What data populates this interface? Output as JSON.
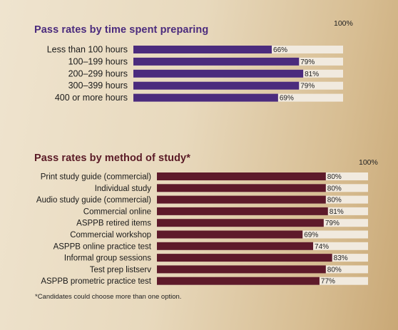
{
  "chart_data": [
    {
      "type": "bar",
      "orientation": "horizontal",
      "title": "Pass rates by time spent preparing",
      "max_label": "100%",
      "xlim": [
        0,
        100
      ],
      "bar_color": "#4b2b7d",
      "track_color": "#f1eadf",
      "categories": [
        "Less than 100 hours",
        "100–199 hours",
        "200–299 hours",
        "300–399 hours",
        "400 or more hours"
      ],
      "values": [
        66,
        79,
        81,
        79,
        69
      ],
      "value_labels": [
        "66%",
        "79%",
        "81%",
        "79%",
        "69%"
      ]
    },
    {
      "type": "bar",
      "orientation": "horizontal",
      "title": "Pass rates by method of study*",
      "max_label": "100%",
      "xlim": [
        0,
        100
      ],
      "bar_color": "#5e1a2a",
      "track_color": "#f1eadf",
      "categories": [
        "Print study guide (commercial)",
        "Individual study",
        "Audio study guide (commercial)",
        "Commercial online",
        "ASPPB retired items",
        "Commercial workshop",
        "ASPPB online practice test",
        "Informal group sessions",
        "Test prep listserv",
        "ASPPB prometric practice test"
      ],
      "values": [
        80,
        80,
        80,
        81,
        79,
        69,
        74,
        83,
        80,
        77
      ],
      "value_labels": [
        "80%",
        "80%",
        "80%",
        "81%",
        "79%",
        "69%",
        "74%",
        "83%",
        "80%",
        "77%"
      ]
    }
  ],
  "footnote": "*Candidates could choose more than one option."
}
